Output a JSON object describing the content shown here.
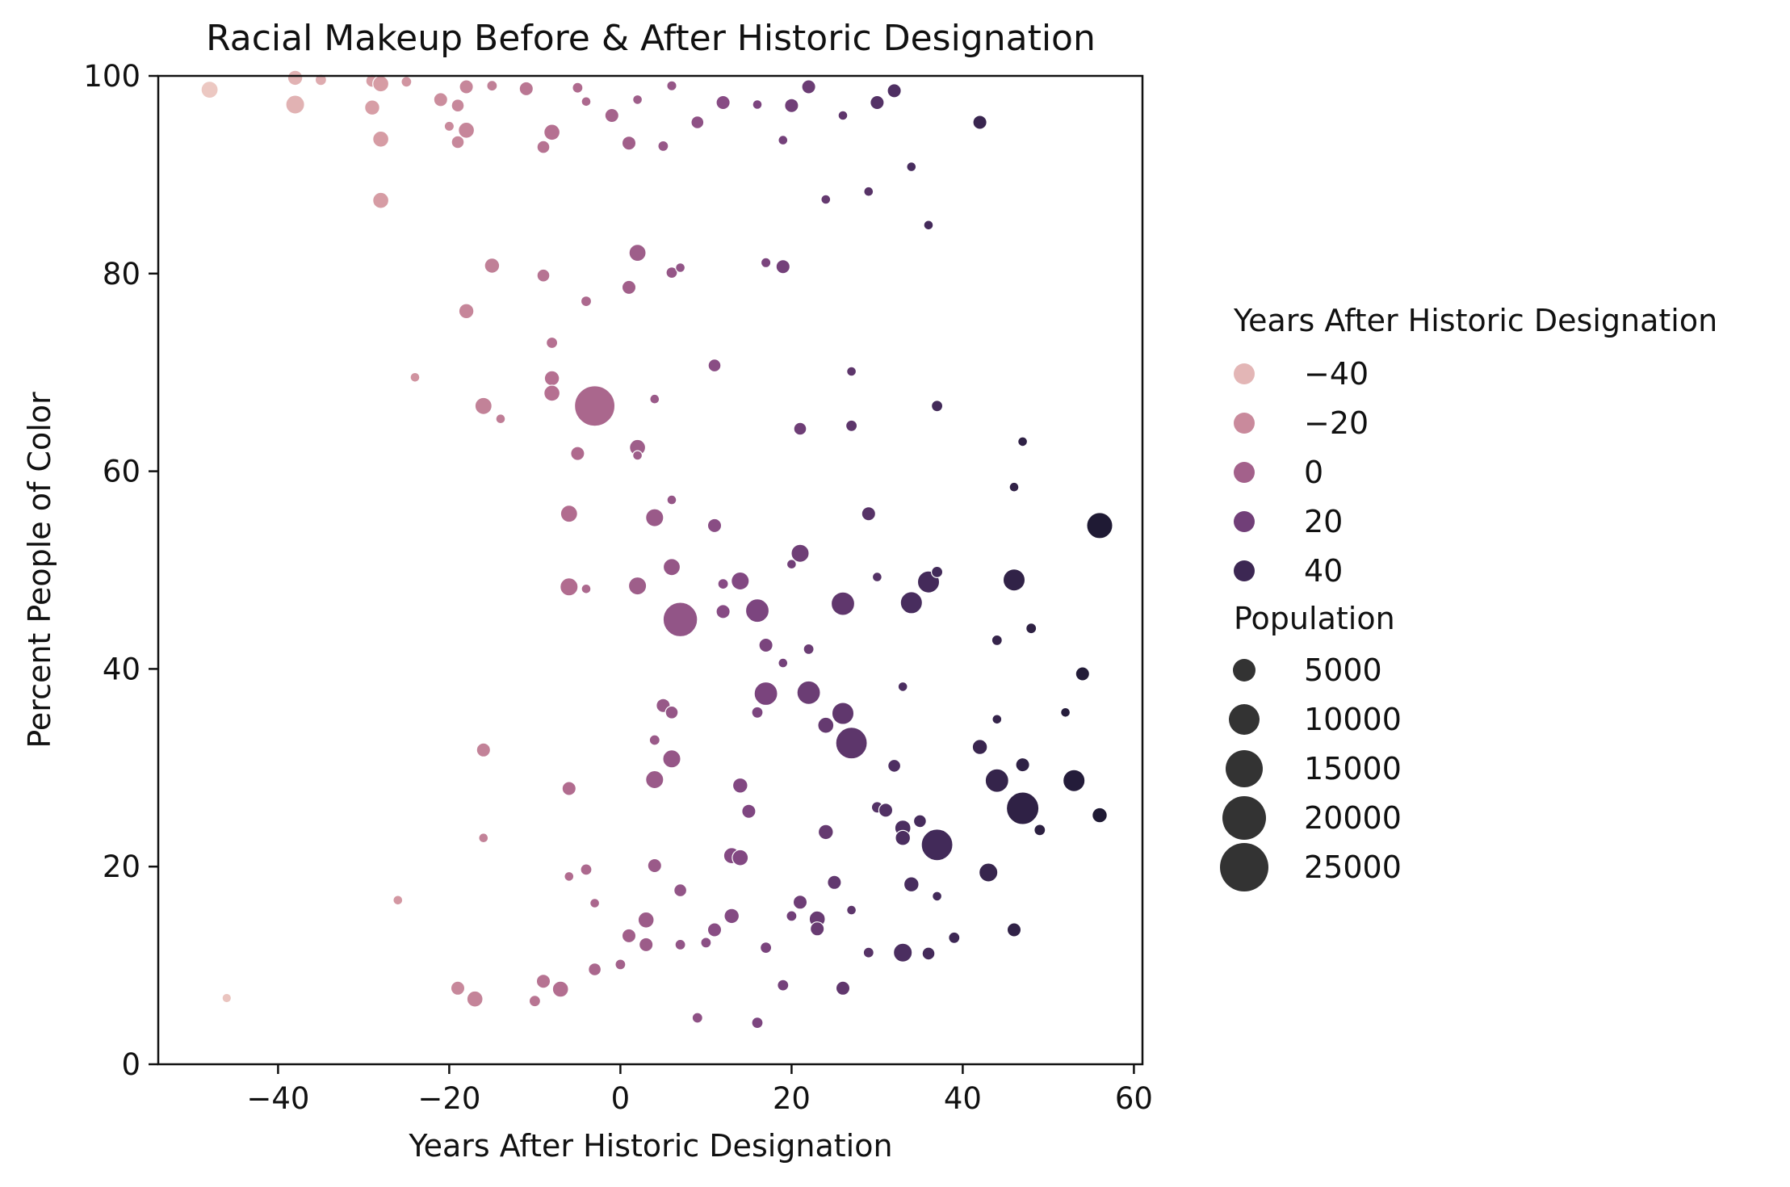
{
  "chart_data": {
    "type": "scatter",
    "title": "Racial Makeup Before & After Historic Designation",
    "xlabel": "Years After Historic Designation",
    "ylabel": "Percent People of Color",
    "xlim": [
      -54,
      61
    ],
    "ylim": [
      0,
      100
    ],
    "xticks": [
      -40,
      -20,
      0,
      20,
      40,
      60
    ],
    "xtick_labels": [
      "−40",
      "−20",
      "0",
      "20",
      "40",
      "60"
    ],
    "yticks": [
      0,
      20,
      40,
      60,
      80,
      100
    ],
    "ytick_labels": [
      "0",
      "20",
      "40",
      "60",
      "80",
      "100"
    ],
    "grid": false,
    "hue": {
      "variable": "Years After Historic Designation",
      "colors_light_to_dark": [
        "#ecc8c2",
        "#d59aa3",
        "#b26d8f",
        "#814782",
        "#452b5c",
        "#1f1a34"
      ],
      "range": [
        -48,
        56
      ]
    },
    "size": {
      "variable": "Population",
      "range": [
        500,
        27000
      ]
    },
    "legend": {
      "placement": "right",
      "hue_title": "Years After Historic Designation",
      "hue_entries": [
        {
          "label": "−40",
          "value": -40
        },
        {
          "label": "−20",
          "value": -20
        },
        {
          "label": "0",
          "value": 0
        },
        {
          "label": "20",
          "value": 20
        },
        {
          "label": "40",
          "value": 40
        }
      ],
      "size_title": "Population",
      "size_entries": [
        {
          "label": "5000",
          "value": 5000
        },
        {
          "label": "10000",
          "value": 10000
        },
        {
          "label": "15000",
          "value": 15000
        },
        {
          "label": "20000",
          "value": 20000
        },
        {
          "label": "25000",
          "value": 25000
        }
      ]
    },
    "points": [
      {
        "x": -48,
        "y": 98.6,
        "pop": 4000
      },
      {
        "x": -46,
        "y": 6.7,
        "pop": 800
      },
      {
        "x": -38,
        "y": 99.8,
        "pop": 3000
      },
      {
        "x": -38,
        "y": 97.1,
        "pop": 5000
      },
      {
        "x": -35,
        "y": 99.6,
        "pop": 1500
      },
      {
        "x": -29,
        "y": 99.5,
        "pop": 2000
      },
      {
        "x": -29,
        "y": 96.8,
        "pop": 3000
      },
      {
        "x": -28,
        "y": 99.2,
        "pop": 3500
      },
      {
        "x": -28,
        "y": 93.6,
        "pop": 3500
      },
      {
        "x": -28,
        "y": 87.4,
        "pop": 3500
      },
      {
        "x": -25,
        "y": 99.4,
        "pop": 1200
      },
      {
        "x": -24,
        "y": 69.5,
        "pop": 900
      },
      {
        "x": -26,
        "y": 16.6,
        "pop": 900
      },
      {
        "x": -21,
        "y": 97.6,
        "pop": 2500
      },
      {
        "x": -20,
        "y": 94.9,
        "pop": 1000
      },
      {
        "x": -19,
        "y": 97.0,
        "pop": 2000
      },
      {
        "x": -19,
        "y": 93.3,
        "pop": 2000
      },
      {
        "x": -18,
        "y": 98.9,
        "pop": 2500
      },
      {
        "x": -18,
        "y": 94.5,
        "pop": 3500
      },
      {
        "x": -18,
        "y": 76.2,
        "pop": 3000
      },
      {
        "x": -19,
        "y": 7.7,
        "pop": 2500
      },
      {
        "x": -17,
        "y": 6.6,
        "pop": 3500
      },
      {
        "x": -16,
        "y": 66.6,
        "pop": 4000
      },
      {
        "x": -16,
        "y": 31.8,
        "pop": 2500
      },
      {
        "x": -16,
        "y": 22.9,
        "pop": 900
      },
      {
        "x": -15,
        "y": 99.0,
        "pop": 1200
      },
      {
        "x": -15,
        "y": 80.8,
        "pop": 3000
      },
      {
        "x": -14,
        "y": 65.3,
        "pop": 900
      },
      {
        "x": -11,
        "y": 98.7,
        "pop": 2500
      },
      {
        "x": -10,
        "y": 6.4,
        "pop": 1500
      },
      {
        "x": -9,
        "y": 92.8,
        "pop": 2000
      },
      {
        "x": -9,
        "y": 79.8,
        "pop": 2000
      },
      {
        "x": -9,
        "y": 8.4,
        "pop": 2500
      },
      {
        "x": -8,
        "y": 94.3,
        "pop": 3500
      },
      {
        "x": -8,
        "y": 73.0,
        "pop": 1500
      },
      {
        "x": -8,
        "y": 69.4,
        "pop": 3000
      },
      {
        "x": -8,
        "y": 67.9,
        "pop": 3500
      },
      {
        "x": -7,
        "y": 7.6,
        "pop": 3500
      },
      {
        "x": -6,
        "y": 55.7,
        "pop": 4000
      },
      {
        "x": -6,
        "y": 48.3,
        "pop": 4500
      },
      {
        "x": -6,
        "y": 27.9,
        "pop": 2500
      },
      {
        "x": -6,
        "y": 19.0,
        "pop": 900
      },
      {
        "x": -5,
        "y": 98.8,
        "pop": 1200
      },
      {
        "x": -5,
        "y": 61.8,
        "pop": 2500
      },
      {
        "x": -4,
        "y": 97.4,
        "pop": 900
      },
      {
        "x": -4,
        "y": 77.2,
        "pop": 1200
      },
      {
        "x": -4,
        "y": 48.1,
        "pop": 900
      },
      {
        "x": -4,
        "y": 19.7,
        "pop": 1500
      },
      {
        "x": -3,
        "y": 66.6,
        "pop": 25000
      },
      {
        "x": -3,
        "y": 16.3,
        "pop": 900
      },
      {
        "x": -3,
        "y": 9.6,
        "pop": 2000
      },
      {
        "x": -1,
        "y": 96.0,
        "pop": 2500
      },
      {
        "x": 0,
        "y": 10.1,
        "pop": 1200
      },
      {
        "x": 1,
        "y": 93.2,
        "pop": 2500
      },
      {
        "x": 1,
        "y": 78.6,
        "pop": 2500
      },
      {
        "x": 1,
        "y": 13.0,
        "pop": 2500
      },
      {
        "x": 2,
        "y": 97.6,
        "pop": 900
      },
      {
        "x": 2,
        "y": 82.1,
        "pop": 4000
      },
      {
        "x": 2,
        "y": 62.4,
        "pop": 3500
      },
      {
        "x": 2,
        "y": 61.6,
        "pop": 900
      },
      {
        "x": 2,
        "y": 48.4,
        "pop": 4500
      },
      {
        "x": 3,
        "y": 14.6,
        "pop": 3500
      },
      {
        "x": 3,
        "y": 12.1,
        "pop": 2500
      },
      {
        "x": 4,
        "y": 67.3,
        "pop": 900
      },
      {
        "x": 4,
        "y": 55.3,
        "pop": 4500
      },
      {
        "x": 4,
        "y": 32.8,
        "pop": 1200
      },
      {
        "x": 4,
        "y": 28.8,
        "pop": 4500
      },
      {
        "x": 4,
        "y": 20.1,
        "pop": 2500
      },
      {
        "x": 5,
        "y": 92.9,
        "pop": 1200
      },
      {
        "x": 5,
        "y": 36.3,
        "pop": 2500
      },
      {
        "x": 6,
        "y": 99.0,
        "pop": 1000
      },
      {
        "x": 6,
        "y": 80.1,
        "pop": 1500
      },
      {
        "x": 6,
        "y": 57.1,
        "pop": 900
      },
      {
        "x": 6,
        "y": 50.3,
        "pop": 4000
      },
      {
        "x": 6,
        "y": 35.6,
        "pop": 2000
      },
      {
        "x": 6,
        "y": 30.9,
        "pop": 4500
      },
      {
        "x": 7,
        "y": 80.6,
        "pop": 900
      },
      {
        "x": 7,
        "y": 45.0,
        "pop": 18000
      },
      {
        "x": 7,
        "y": 17.6,
        "pop": 2000
      },
      {
        "x": 7,
        "y": 12.1,
        "pop": 1200
      },
      {
        "x": 9,
        "y": 95.3,
        "pop": 2000
      },
      {
        "x": 9,
        "y": 4.7,
        "pop": 1200
      },
      {
        "x": 10,
        "y": 12.3,
        "pop": 1200
      },
      {
        "x": 11,
        "y": 70.7,
        "pop": 2000
      },
      {
        "x": 11,
        "y": 54.5,
        "pop": 2500
      },
      {
        "x": 11,
        "y": 13.6,
        "pop": 2500
      },
      {
        "x": 12,
        "y": 97.3,
        "pop": 2500
      },
      {
        "x": 12,
        "y": 48.6,
        "pop": 1200
      },
      {
        "x": 12,
        "y": 45.8,
        "pop": 2500
      },
      {
        "x": 13,
        "y": 21.1,
        "pop": 3500
      },
      {
        "x": 13,
        "y": 15.0,
        "pop": 3000
      },
      {
        "x": 14,
        "y": 48.9,
        "pop": 4500
      },
      {
        "x": 14,
        "y": 28.2,
        "pop": 3000
      },
      {
        "x": 14,
        "y": 20.9,
        "pop": 3500
      },
      {
        "x": 15,
        "y": 25.6,
        "pop": 2500
      },
      {
        "x": 16,
        "y": 97.1,
        "pop": 900
      },
      {
        "x": 16,
        "y": 45.9,
        "pop": 8000
      },
      {
        "x": 16,
        "y": 35.6,
        "pop": 1500
      },
      {
        "x": 16,
        "y": 4.2,
        "pop": 1500
      },
      {
        "x": 17,
        "y": 81.1,
        "pop": 1000
      },
      {
        "x": 17,
        "y": 42.4,
        "pop": 2500
      },
      {
        "x": 17,
        "y": 37.5,
        "pop": 8000
      },
      {
        "x": 17,
        "y": 11.8,
        "pop": 1500
      },
      {
        "x": 19,
        "y": 93.5,
        "pop": 900
      },
      {
        "x": 19,
        "y": 80.7,
        "pop": 2500
      },
      {
        "x": 19,
        "y": 40.6,
        "pop": 900
      },
      {
        "x": 19,
        "y": 8.0,
        "pop": 1500
      },
      {
        "x": 20,
        "y": 97.0,
        "pop": 2500
      },
      {
        "x": 20,
        "y": 50.6,
        "pop": 900
      },
      {
        "x": 20,
        "y": 15.0,
        "pop": 1200
      },
      {
        "x": 21,
        "y": 64.3,
        "pop": 2000
      },
      {
        "x": 21,
        "y": 51.7,
        "pop": 4500
      },
      {
        "x": 21,
        "y": 16.4,
        "pop": 2500
      },
      {
        "x": 22,
        "y": 98.9,
        "pop": 2500
      },
      {
        "x": 22,
        "y": 42.0,
        "pop": 1200
      },
      {
        "x": 22,
        "y": 37.6,
        "pop": 8000
      },
      {
        "x": 23,
        "y": 14.7,
        "pop": 3500
      },
      {
        "x": 23,
        "y": 13.7,
        "pop": 2500
      },
      {
        "x": 24,
        "y": 87.5,
        "pop": 900
      },
      {
        "x": 24,
        "y": 34.3,
        "pop": 3500
      },
      {
        "x": 24,
        "y": 23.5,
        "pop": 3000
      },
      {
        "x": 25,
        "y": 18.4,
        "pop": 2500
      },
      {
        "x": 26,
        "y": 96.0,
        "pop": 900
      },
      {
        "x": 26,
        "y": 46.6,
        "pop": 8000
      },
      {
        "x": 26,
        "y": 35.5,
        "pop": 7000
      },
      {
        "x": 26,
        "y": 7.7,
        "pop": 2500
      },
      {
        "x": 27,
        "y": 70.1,
        "pop": 900
      },
      {
        "x": 27,
        "y": 64.6,
        "pop": 1500
      },
      {
        "x": 27,
        "y": 32.5,
        "pop": 15000
      },
      {
        "x": 27,
        "y": 15.6,
        "pop": 900
      },
      {
        "x": 29,
        "y": 88.3,
        "pop": 900
      },
      {
        "x": 29,
        "y": 55.7,
        "pop": 2500
      },
      {
        "x": 29,
        "y": 11.3,
        "pop": 1200
      },
      {
        "x": 30,
        "y": 97.3,
        "pop": 2500
      },
      {
        "x": 30,
        "y": 49.3,
        "pop": 900
      },
      {
        "x": 30,
        "y": 26.0,
        "pop": 1500
      },
      {
        "x": 31,
        "y": 25.7,
        "pop": 2500
      },
      {
        "x": 32,
        "y": 98.5,
        "pop": 2500
      },
      {
        "x": 32,
        "y": 30.2,
        "pop": 2000
      },
      {
        "x": 33,
        "y": 38.2,
        "pop": 900
      },
      {
        "x": 33,
        "y": 23.9,
        "pop": 3500
      },
      {
        "x": 33,
        "y": 22.9,
        "pop": 3000
      },
      {
        "x": 33,
        "y": 11.3,
        "pop": 5000
      },
      {
        "x": 34,
        "y": 90.8,
        "pop": 900
      },
      {
        "x": 34,
        "y": 46.7,
        "pop": 7000
      },
      {
        "x": 34,
        "y": 18.2,
        "pop": 3000
      },
      {
        "x": 35,
        "y": 24.6,
        "pop": 2000
      },
      {
        "x": 36,
        "y": 84.9,
        "pop": 900
      },
      {
        "x": 36,
        "y": 48.8,
        "pop": 7000
      },
      {
        "x": 36,
        "y": 11.2,
        "pop": 2000
      },
      {
        "x": 37,
        "y": 66.6,
        "pop": 1500
      },
      {
        "x": 37,
        "y": 49.8,
        "pop": 1500
      },
      {
        "x": 37,
        "y": 22.2,
        "pop": 15000
      },
      {
        "x": 37,
        "y": 17.0,
        "pop": 900
      },
      {
        "x": 39,
        "y": 12.8,
        "pop": 1500
      },
      {
        "x": 42,
        "y": 95.3,
        "pop": 2500
      },
      {
        "x": 42,
        "y": 32.1,
        "pop": 3000
      },
      {
        "x": 43,
        "y": 19.4,
        "pop": 5000
      },
      {
        "x": 44,
        "y": 42.9,
        "pop": 1200
      },
      {
        "x": 44,
        "y": 34.9,
        "pop": 900
      },
      {
        "x": 44,
        "y": 28.7,
        "pop": 8000
      },
      {
        "x": 46,
        "y": 58.4,
        "pop": 900
      },
      {
        "x": 46,
        "y": 49.0,
        "pop": 7000
      },
      {
        "x": 46,
        "y": 13.6,
        "pop": 2500
      },
      {
        "x": 47,
        "y": 63.0,
        "pop": 900
      },
      {
        "x": 47,
        "y": 30.3,
        "pop": 2500
      },
      {
        "x": 47,
        "y": 25.9,
        "pop": 16000
      },
      {
        "x": 48,
        "y": 44.1,
        "pop": 1200
      },
      {
        "x": 49,
        "y": 23.7,
        "pop": 1500
      },
      {
        "x": 52,
        "y": 35.6,
        "pop": 900
      },
      {
        "x": 53,
        "y": 28.7,
        "pop": 7000
      },
      {
        "x": 54,
        "y": 39.5,
        "pop": 2500
      },
      {
        "x": 56,
        "y": 54.5,
        "pop": 10000
      },
      {
        "x": 56,
        "y": 25.2,
        "pop": 3000
      }
    ]
  }
}
